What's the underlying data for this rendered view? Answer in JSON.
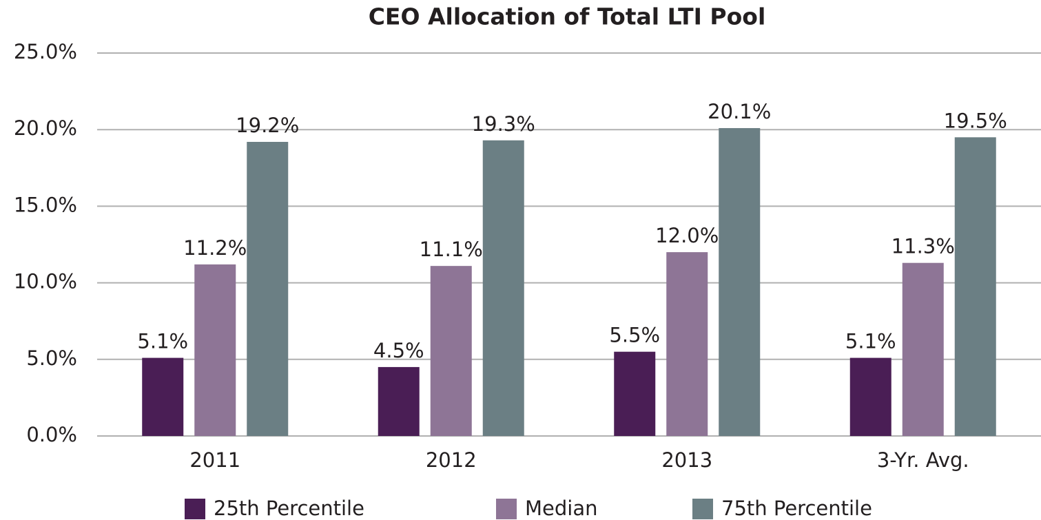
{
  "chart_data": {
    "type": "bar",
    "title": "CEO Allocation of Total LTI Pool",
    "categories": [
      "2011",
      "2012",
      "2013",
      "3-Yr. Avg."
    ],
    "series": [
      {
        "name": "25th Percentile",
        "color": "#4a1e55",
        "values": [
          5.1,
          4.5,
          5.5,
          5.1
        ],
        "value_labels": [
          "5.1%",
          "4.5%",
          "5.5%",
          "5.1%"
        ]
      },
      {
        "name": "Median",
        "color": "#8e7596",
        "values": [
          11.2,
          11.1,
          12.0,
          11.3
        ],
        "value_labels": [
          "11.2%",
          "11.1%",
          "12.0%",
          "11.3%"
        ]
      },
      {
        "name": "75th Percentile",
        "color": "#6b7f84",
        "values": [
          19.2,
          19.3,
          20.1,
          19.5
        ],
        "value_labels": [
          "19.2%",
          "19.3%",
          "20.1%",
          "19.5%"
        ]
      }
    ],
    "ylim": [
      0,
      25
    ],
    "yticks": [
      {
        "value": 0,
        "label": "0.0%"
      },
      {
        "value": 5,
        "label": "5.0%"
      },
      {
        "value": 10,
        "label": "10.0%"
      },
      {
        "value": 15,
        "label": "15.0%"
      },
      {
        "value": 20,
        "label": "20.0%"
      },
      {
        "value": 25,
        "label": "25.0%"
      }
    ],
    "grid": true,
    "legend": "bottom"
  }
}
